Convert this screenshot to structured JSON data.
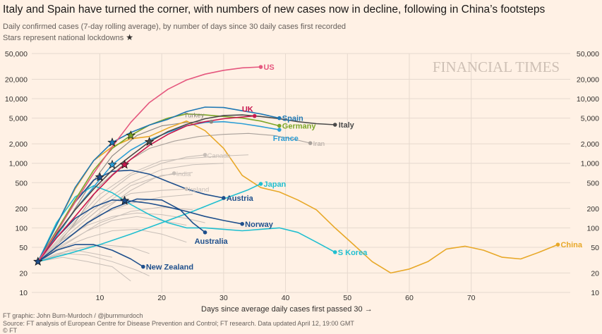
{
  "header": {
    "title": "Italy and Spain have turned the corner, with numbers of new cases now in decline, following in China’s footsteps",
    "subtitle": "Daily confirmed cases (7-day rolling average), by number of days since 30 daily cases first recorded",
    "note": "Stars represent national lockdowns",
    "note_icon": "★"
  },
  "watermark": "FINANCIAL TIMES",
  "footer": {
    "credit": "FT graphic: John Burn-Murdoch / @jburnmurdoch",
    "source": "Source: FT analysis of European Centre for Disease Prevention and Control; FT research. Data updated April 12, 19:00 GMT",
    "copyright": "© FT"
  },
  "colors": {
    "background": "#fff1e5",
    "grid": "#e6d9ce",
    "gray": "#c8bfb8",
    "US": "#e5577e",
    "UK": "#c8174e",
    "Spain": "#1f78b4",
    "Italy": "#4a4a4a",
    "Germany": "#7ba627",
    "France": "#2c9ed6",
    "Iran": "#a8a09a",
    "Turkey": "#8a8580",
    "Japan": "#20bfd0",
    "SKorea": "#20bfd0",
    "China": "#e8a828",
    "Austria": "#1e4f8c",
    "Norway": "#1e4f8c",
    "Australia": "#1e4f8c",
    "NewZealand": "#1e4f8c"
  },
  "chart_data": {
    "type": "line",
    "title": "Italy and Spain have turned the corner, with numbers of new cases now in decline, following in China’s footsteps",
    "xlabel": "Days since average daily cases first passed 30 →",
    "ylabel": "",
    "yscale": "log",
    "xlim": [
      -1,
      86
    ],
    "ylim": [
      10,
      50000
    ],
    "x_ticks": [
      10,
      20,
      30,
      40,
      50,
      60,
      70
    ],
    "y_ticks": [
      10,
      20,
      50,
      100,
      200,
      500,
      1000,
      2000,
      5000,
      10000,
      20000,
      50000
    ],
    "y_tick_labels": [
      "10",
      "20",
      "50",
      "100",
      "200",
      "500",
      "1,000",
      "2,000",
      "5,000",
      "10,000",
      "20,000",
      "50,000"
    ],
    "grid": true,
    "series": [
      {
        "name": "US",
        "highlight": true,
        "x": [
          0,
          3,
          6,
          9,
          12,
          15,
          18,
          21,
          24,
          27,
          30,
          33,
          36
        ],
        "y": [
          30,
          85,
          250,
          700,
          1800,
          4300,
          8700,
          14000,
          19500,
          24000,
          27500,
          30000,
          31000
        ],
        "stars": []
      },
      {
        "name": "UK",
        "highlight": true,
        "x": [
          0,
          3,
          6,
          9,
          12,
          15,
          18,
          21,
          24,
          27,
          30,
          33,
          35
        ],
        "y": [
          30,
          70,
          150,
          330,
          650,
          1150,
          1900,
          2800,
          3800,
          4400,
          4900,
          5200,
          5400
        ],
        "stars": [
          14
        ]
      },
      {
        "name": "Spain",
        "highlight": true,
        "x": [
          0,
          3,
          6,
          9,
          12,
          15,
          18,
          21,
          24,
          27,
          30,
          33,
          36,
          39
        ],
        "y": [
          30,
          110,
          420,
          1100,
          2100,
          3000,
          3900,
          4800,
          6300,
          7400,
          7300,
          6500,
          5800,
          5000
        ],
        "stars": [
          12
        ]
      },
      {
        "name": "Italy",
        "highlight": true,
        "x": [
          0,
          3,
          6,
          9,
          12,
          15,
          18,
          21,
          24,
          27,
          30,
          33,
          36,
          39,
          42,
          45,
          48
        ],
        "y": [
          30,
          80,
          190,
          400,
          780,
          1300,
          2150,
          3100,
          4000,
          4900,
          5500,
          5600,
          5300,
          4900,
          4400,
          4100,
          3950
        ],
        "stars": [
          18
        ]
      },
      {
        "name": "Germany",
        "highlight": true,
        "x": [
          0,
          3,
          6,
          9,
          12,
          15,
          18,
          21,
          24,
          27,
          30,
          33,
          36,
          39
        ],
        "y": [
          30,
          90,
          270,
          780,
          1700,
          2700,
          3900,
          5000,
          5800,
          5600,
          5300,
          5000,
          4500,
          3800
        ],
        "stars": [
          15
        ]
      },
      {
        "name": "France",
        "highlight": true,
        "x": [
          0,
          3,
          6,
          9,
          12,
          15,
          18,
          21,
          24,
          27,
          30,
          33,
          36,
          39
        ],
        "y": [
          30,
          75,
          190,
          430,
          950,
          1600,
          2300,
          3000,
          3800,
          4300,
          4400,
          4100,
          3700,
          3300
        ],
        "stars": [
          12
        ]
      },
      {
        "name": "Iran",
        "highlight": false,
        "x": [
          2,
          6,
          10,
          14,
          18,
          22,
          26,
          30,
          34,
          38,
          41,
          44
        ],
        "y": [
          40,
          120,
          450,
          1000,
          1700,
          2200,
          2600,
          2800,
          2900,
          2700,
          2400,
          2050
        ],
        "stars": []
      },
      {
        "name": "Turkey",
        "highlight": false,
        "x": [
          4,
          8,
          12,
          16,
          20,
          24,
          28
        ],
        "y": [
          100,
          400,
          1300,
          2700,
          3800,
          4300,
          4400
        ],
        "stars": []
      },
      {
        "name": "Canada",
        "highlight": false,
        "x": [
          0,
          5,
          10,
          15,
          20,
          24,
          27
        ],
        "y": [
          30,
          90,
          280,
          650,
          1000,
          1250,
          1350
        ],
        "stars": []
      },
      {
        "name": "India",
        "highlight": false,
        "x": [
          0,
          5,
          10,
          15,
          19,
          22
        ],
        "y": [
          30,
          70,
          170,
          380,
          600,
          700
        ],
        "stars": []
      },
      {
        "name": "Ireland",
        "highlight": false,
        "x": [
          0,
          5,
          10,
          15,
          20,
          24
        ],
        "y": [
          30,
          80,
          200,
          340,
          380,
          400
        ],
        "stars": []
      },
      {
        "name": "Japan",
        "highlight": true,
        "x": [
          0,
          5,
          10,
          15,
          20,
          25,
          30,
          34,
          36
        ],
        "y": [
          30,
          40,
          55,
          80,
          120,
          180,
          280,
          390,
          480
        ],
        "stars": []
      },
      {
        "name": "S Korea",
        "highlight": true,
        "x": [
          0,
          3,
          6,
          9,
          12,
          15,
          18,
          21,
          24,
          27,
          30,
          33,
          36,
          39,
          42,
          45,
          48
        ],
        "y": [
          30,
          120,
          300,
          450,
          350,
          230,
          160,
          120,
          100,
          100,
          95,
          90,
          95,
          100,
          85,
          60,
          42
        ],
        "stars": []
      },
      {
        "name": "China",
        "highlight": true,
        "x": [
          0,
          3,
          6,
          9,
          12,
          15,
          18,
          21,
          24,
          27,
          30,
          33,
          36,
          39,
          42,
          45,
          48,
          51,
          54,
          57,
          60,
          63,
          66,
          69,
          72,
          75,
          78,
          81,
          84
        ],
        "y": [
          30,
          110,
          400,
          1100,
          1800,
          2400,
          2600,
          3500,
          4500,
          3200,
          1700,
          650,
          420,
          360,
          270,
          190,
          100,
          55,
          30,
          20,
          23,
          30,
          47,
          52,
          45,
          35,
          33,
          42,
          55
        ],
        "stars": []
      },
      {
        "name": "Austria",
        "highlight": true,
        "x": [
          0,
          3,
          6,
          9,
          12,
          15,
          18,
          21,
          24,
          27,
          30
        ],
        "y": [
          30,
          90,
          250,
          550,
          750,
          780,
          680,
          520,
          400,
          330,
          290
        ],
        "stars": [
          10
        ]
      },
      {
        "name": "Norway",
        "highlight": true,
        "x": [
          0,
          3,
          6,
          9,
          12,
          15,
          18,
          21,
          24,
          27,
          30,
          33
        ],
        "y": [
          30,
          70,
          140,
          210,
          270,
          260,
          240,
          210,
          180,
          150,
          130,
          115
        ],
        "stars": [
          14
        ]
      },
      {
        "name": "Australia",
        "highlight": true,
        "x": [
          0,
          4,
          8,
          12,
          16,
          20,
          23,
          25,
          27
        ],
        "y": [
          30,
          60,
          120,
          200,
          280,
          270,
          190,
          120,
          85
        ],
        "stars": []
      },
      {
        "name": "New Zealand",
        "highlight": true,
        "x": [
          0,
          3,
          6,
          9,
          12,
          15,
          17
        ],
        "y": [
          30,
          45,
          55,
          55,
          45,
          33,
          25
        ],
        "stars": [
          0
        ]
      }
    ],
    "gray_series": [
      [
        [
          0,
          30
        ],
        [
          5,
          70
        ],
        [
          10,
          160
        ],
        [
          15,
          240
        ],
        [
          20,
          300
        ],
        [
          25,
          330
        ]
      ],
      [
        [
          0,
          30
        ],
        [
          5,
          60
        ],
        [
          10,
          120
        ],
        [
          15,
          180
        ],
        [
          20,
          210
        ],
        [
          25,
          190
        ]
      ],
      [
        [
          0,
          30
        ],
        [
          4,
          55
        ],
        [
          8,
          90
        ],
        [
          12,
          130
        ],
        [
          16,
          150
        ],
        [
          20,
          130
        ],
        [
          24,
          110
        ]
      ],
      [
        [
          0,
          30
        ],
        [
          4,
          50
        ],
        [
          8,
          70
        ],
        [
          12,
          90
        ],
        [
          16,
          95
        ],
        [
          20,
          80
        ],
        [
          24,
          60
        ]
      ],
      [
        [
          0,
          30
        ],
        [
          5,
          45
        ],
        [
          10,
          55
        ],
        [
          15,
          50
        ],
        [
          18,
          40
        ]
      ],
      [
        [
          0,
          30
        ],
        [
          4,
          40
        ],
        [
          8,
          38
        ],
        [
          12,
          30
        ],
        [
          16,
          22
        ],
        [
          18,
          18
        ]
      ],
      [
        [
          0,
          30
        ],
        [
          5,
          80
        ],
        [
          10,
          200
        ],
        [
          15,
          450
        ],
        [
          20,
          650
        ],
        [
          25,
          720
        ]
      ],
      [
        [
          0,
          30
        ],
        [
          5,
          90
        ],
        [
          10,
          230
        ],
        [
          15,
          500
        ],
        [
          20,
          800
        ],
        [
          25,
          950
        ],
        [
          30,
          1000
        ]
      ],
      [
        [
          0,
          30
        ],
        [
          4,
          35
        ],
        [
          8,
          30
        ],
        [
          12,
          25
        ],
        [
          15,
          15
        ]
      ],
      [
        [
          0,
          30
        ],
        [
          5,
          100
        ],
        [
          10,
          330
        ],
        [
          15,
          700
        ],
        [
          20,
          1100
        ],
        [
          25,
          1200
        ],
        [
          30,
          1300
        ],
        [
          34,
          1350
        ]
      ],
      [
        [
          0,
          30
        ],
        [
          3,
          40
        ],
        [
          6,
          45
        ],
        [
          9,
          40
        ],
        [
          12,
          35
        ]
      ],
      [
        [
          0,
          30
        ],
        [
          4,
          65
        ],
        [
          8,
          110
        ],
        [
          12,
          150
        ],
        [
          16,
          170
        ],
        [
          20,
          160
        ],
        [
          24,
          140
        ],
        [
          27,
          120
        ]
      ]
    ],
    "labels": [
      {
        "series": "US",
        "text": "US"
      },
      {
        "series": "UK",
        "text": "UK"
      },
      {
        "series": "Spain",
        "text": "Spain"
      },
      {
        "series": "Italy",
        "text": "Italy"
      },
      {
        "series": "Germany",
        "text": "Germany"
      },
      {
        "series": "France",
        "text": "France"
      },
      {
        "series": "Iran",
        "text": "Iran"
      },
      {
        "series": "Turkey",
        "text": "Turkey"
      },
      {
        "series": "Canada",
        "text": "Canada"
      },
      {
        "series": "India",
        "text": "India"
      },
      {
        "series": "Ireland",
        "text": "Ireland"
      },
      {
        "series": "Japan",
        "text": "Japan"
      },
      {
        "series": "S Korea",
        "text": "S Korea"
      },
      {
        "series": "China",
        "text": "China"
      },
      {
        "series": "Austria",
        "text": "Austria"
      },
      {
        "series": "Norway",
        "text": "Norway"
      },
      {
        "series": "Australia",
        "text": "Australia"
      },
      {
        "series": "New Zealand",
        "text": "New Zealand"
      }
    ]
  }
}
